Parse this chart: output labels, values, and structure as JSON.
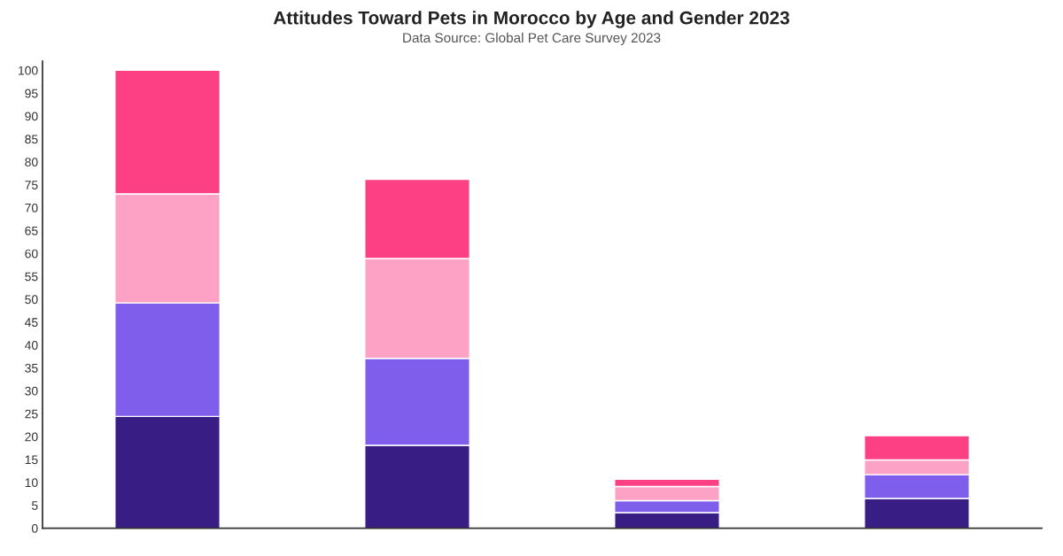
{
  "chart_data": {
    "type": "bar",
    "title": "Attitudes Toward Pets in Morocco by Age and Gender 2023",
    "subtitle": "Data Source: Global Pet Care Survey 2023",
    "categories": [
      null,
      null,
      null,
      null
    ],
    "stacked": true,
    "series": [
      {
        "color": "#381d85",
        "values": [
          24.4,
          18.1,
          3.4,
          6.5
        ]
      },
      {
        "color": "#7f5eec",
        "values": [
          24.8,
          19.0,
          2.6,
          5.2
        ]
      },
      {
        "color": "#fda2c4",
        "values": [
          23.8,
          21.8,
          3.1,
          3.2
        ]
      },
      {
        "color": "#fd3f83",
        "values": [
          27.0,
          17.3,
          1.6,
          5.3
        ]
      }
    ],
    "ylim": [
      0,
      102
    ],
    "yticks": [
      0,
      5,
      10,
      15,
      20,
      25,
      30,
      35,
      40,
      45,
      50,
      55,
      60,
      65,
      70,
      75,
      80,
      85,
      90,
      95,
      100
    ],
    "grid": false
  }
}
